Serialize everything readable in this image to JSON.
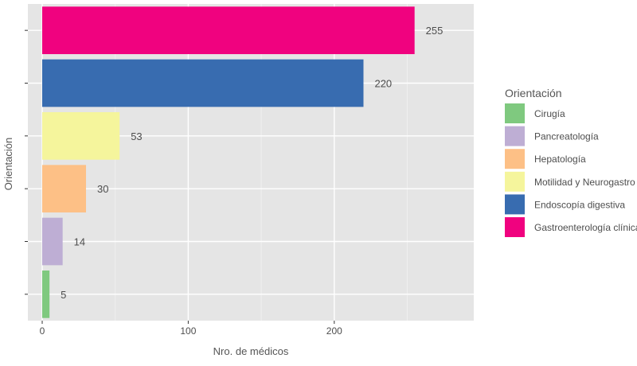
{
  "chart_data": {
    "type": "bar",
    "orientation": "horizontal",
    "xlabel": "Nro. de médicos",
    "ylabel": "Orientación",
    "xlim": [
      0,
      295
    ],
    "x_ticks": [
      0,
      100,
      200
    ],
    "grid": true,
    "legend": {
      "title": "Orientación",
      "placement": "right",
      "entries": [
        {
          "label": "Cirugía",
          "color": "#7fc97f"
        },
        {
          "label": "Pancreatología",
          "color": "#beaed4"
        },
        {
          "label": "Hepatología",
          "color": "#fdc086"
        },
        {
          "label": "Motilidad y Neurogastro",
          "color": "#f5f59c"
        },
        {
          "label": "Endoscopía digestiva",
          "color": "#386cb0"
        },
        {
          "label": "Gastroenterología clínica",
          "color": "#f0027f"
        }
      ]
    },
    "bars": [
      {
        "category": "Gastroenterología clínica",
        "value": 255,
        "label": "255",
        "color": "#f0027f"
      },
      {
        "category": "Endoscopía digestiva",
        "value": 220,
        "label": "220",
        "color": "#386cb0"
      },
      {
        "category": "Motilidad y Neurogastro",
        "value": 53,
        "label": "53",
        "color": "#f5f59c"
      },
      {
        "category": "Hepatología",
        "value": 30,
        "label": "30",
        "color": "#fdc086"
      },
      {
        "category": "Pancreatología",
        "value": 14,
        "label": "14",
        "color": "#beaed4"
      },
      {
        "category": "Cirugía",
        "value": 5,
        "label": "5",
        "color": "#7fc97f"
      }
    ]
  }
}
